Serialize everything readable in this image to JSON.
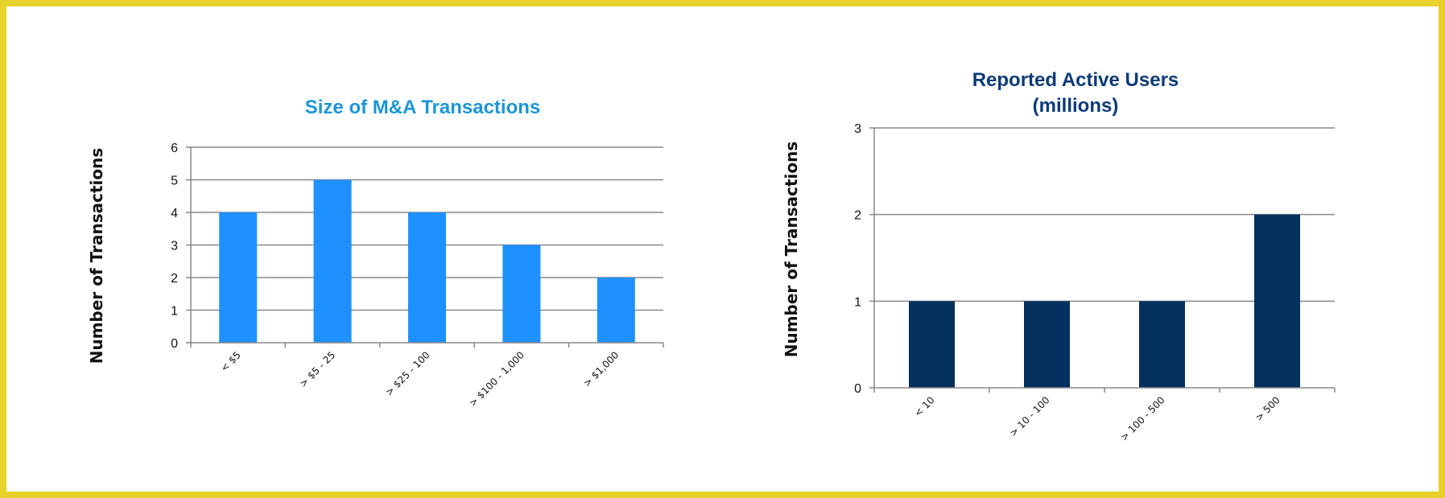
{
  "chart_data": [
    {
      "type": "bar",
      "title": "Size of M&A Transactions",
      "title_lines": [
        "Size of M&A Transactions"
      ],
      "xlabel": "",
      "ylabel": "Number of Transactions",
      "categories": [
        "< $5",
        "> $5 - 25",
        "> $25 - 100",
        "> $100 - 1,000",
        "> $1,000"
      ],
      "series": [
        {
          "values": [
            4,
            5,
            4,
            3,
            2
          ]
        }
      ],
      "ylim": [
        0,
        6
      ],
      "yticks": [
        0,
        1,
        2,
        3,
        4,
        5,
        6
      ],
      "grid": true,
      "legend": "none",
      "bar_color": "#1e90ff",
      "title_color": "#1b96d6"
    },
    {
      "type": "bar",
      "title": "Reported Active Users (millions)",
      "title_lines": [
        "Reported Active Users",
        "(millions)"
      ],
      "xlabel": "",
      "ylabel": "Number of Transactions",
      "categories": [
        "< 10",
        "> 10 - 100",
        "> 100 - 500",
        "> 500"
      ],
      "series": [
        {
          "values": [
            1,
            1,
            1,
            2
          ]
        }
      ],
      "ylim": [
        0,
        3
      ],
      "yticks": [
        0,
        1,
        2,
        3
      ],
      "grid": true,
      "legend": "none",
      "bar_color": "#04305e",
      "title_color": "#0d3b78"
    }
  ],
  "colors": {
    "frame_border": "#e7d12a",
    "axis": "#888888",
    "grid": "#888888"
  }
}
